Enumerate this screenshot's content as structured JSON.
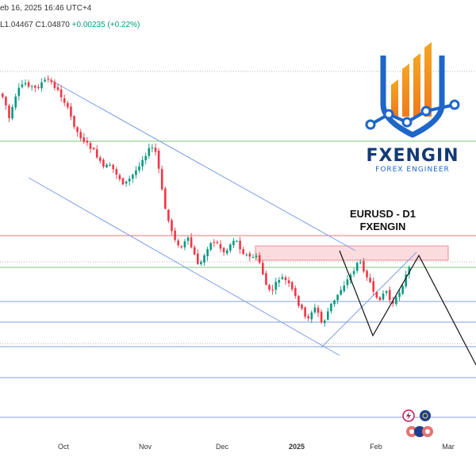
{
  "header": {
    "datetime": "eb 16, 2025 16:46 UTC+4",
    "ohlc_low": "L1.04467",
    "ohlc_close": "C1.04870",
    "ohlc_change": "+0.00235 (+0.22%)"
  },
  "annotation": {
    "line1": "EURUSD - D1",
    "line2": "FXENGIN"
  },
  "logo": {
    "name": "FXENGIN",
    "tagline": "FOREX ENGINEER"
  },
  "colors": {
    "up": "#089981",
    "down": "#f23645",
    "channel": "#7b9fe8",
    "zone_fill": "#f9d0d3",
    "zone_border": "#e57373",
    "green_level": "#7cc67c",
    "blue_level": "#5b7fd6",
    "red_level": "#e57373",
    "projection": "#111111"
  },
  "chart_data": {
    "type": "candlestick",
    "symbol": "EURUSD",
    "timeframe": "D1",
    "x_ticks": [
      "Oct",
      "Nov",
      "Dec",
      "2025",
      "Feb",
      "Mar"
    ],
    "x_tick_bold": [
      false,
      false,
      false,
      true,
      false,
      false
    ],
    "trend": [
      [
        0,
        118
      ],
      [
        5,
        128
      ],
      [
        10,
        150
      ],
      [
        15,
        135
      ],
      [
        20,
        118
      ],
      [
        25,
        108
      ],
      [
        30,
        104
      ],
      [
        35,
        107
      ],
      [
        40,
        110
      ],
      [
        45,
        112
      ],
      [
        50,
        105
      ],
      [
        55,
        102
      ],
      [
        60,
        100
      ],
      [
        65,
        106
      ],
      [
        70,
        112
      ],
      [
        75,
        120
      ],
      [
        80,
        128
      ],
      [
        85,
        140
      ],
      [
        90,
        152
      ],
      [
        95,
        165
      ],
      [
        100,
        172
      ],
      [
        105,
        178
      ],
      [
        110,
        183
      ],
      [
        115,
        188
      ],
      [
        120,
        195
      ],
      [
        125,
        205
      ],
      [
        130,
        212
      ],
      [
        135,
        208
      ],
      [
        140,
        212
      ],
      [
        145,
        218
      ],
      [
        150,
        226
      ],
      [
        155,
        232
      ],
      [
        160,
        228
      ],
      [
        165,
        222
      ],
      [
        170,
        215
      ],
      [
        175,
        206
      ],
      [
        180,
        198
      ],
      [
        185,
        190
      ],
      [
        190,
        186
      ],
      [
        195,
        192
      ],
      [
        200,
        220
      ],
      [
        205,
        255
      ],
      [
        210,
        275
      ],
      [
        215,
        290
      ],
      [
        220,
        302
      ],
      [
        225,
        315
      ],
      [
        230,
        308
      ],
      [
        235,
        300
      ],
      [
        240,
        312
      ],
      [
        245,
        325
      ],
      [
        250,
        336
      ],
      [
        255,
        325
      ],
      [
        260,
        312
      ],
      [
        265,
        306
      ],
      [
        270,
        304
      ],
      [
        275,
        310
      ],
      [
        280,
        318
      ],
      [
        285,
        315
      ],
      [
        290,
        306
      ],
      [
        295,
        300
      ],
      [
        300,
        310
      ],
      [
        305,
        318
      ],
      [
        310,
        322
      ],
      [
        315,
        325
      ],
      [
        320,
        322
      ],
      [
        325,
        328
      ],
      [
        330,
        345
      ],
      [
        335,
        362
      ],
      [
        340,
        370
      ],
      [
        345,
        360
      ],
      [
        350,
        352
      ],
      [
        355,
        350
      ],
      [
        360,
        355
      ],
      [
        365,
        362
      ],
      [
        370,
        372
      ],
      [
        375,
        383
      ],
      [
        380,
        392
      ],
      [
        385,
        404
      ],
      [
        390,
        395
      ],
      [
        395,
        388
      ],
      [
        400,
        395
      ],
      [
        405,
        410
      ],
      [
        410,
        398
      ],
      [
        415,
        385
      ],
      [
        420,
        380
      ],
      [
        425,
        370
      ],
      [
        430,
        362
      ],
      [
        435,
        355
      ],
      [
        440,
        348
      ],
      [
        445,
        340
      ],
      [
        450,
        328
      ],
      [
        455,
        336
      ],
      [
        460,
        345
      ],
      [
        465,
        355
      ],
      [
        470,
        372
      ],
      [
        475,
        380
      ],
      [
        480,
        372
      ],
      [
        485,
        365
      ],
      [
        490,
        378
      ],
      [
        495,
        385
      ],
      [
        500,
        372
      ],
      [
        505,
        362
      ],
      [
        510,
        348
      ],
      [
        515,
        337
      ],
      [
        520,
        330
      ]
    ],
    "channel_upper": [
      [
        62,
        100
      ],
      [
        448,
        316
      ]
    ],
    "channel_lower": [
      [
        36,
        224
      ],
      [
        428,
        448
      ]
    ],
    "channel_inner": [
      [
        405,
        438
      ],
      [
        525,
        318
      ]
    ],
    "projection": [
      [
        428,
        316
      ],
      [
        470,
        423
      ],
      [
        528,
        322
      ],
      [
        600,
        460
      ]
    ],
    "resistance_zone": {
      "x1": 322,
      "x2": 565,
      "y1": 310,
      "y2": 328
    },
    "levels": [
      {
        "y": 90,
        "kind": "dotted"
      },
      {
        "y": 178,
        "kind": "green"
      },
      {
        "y": 297,
        "kind": "red"
      },
      {
        "y": 330,
        "kind": "dotted"
      },
      {
        "y": 337,
        "kind": "green"
      },
      {
        "y": 380,
        "kind": "blue"
      },
      {
        "y": 406,
        "kind": "blue"
      },
      {
        "y": 433,
        "kind": "dotted"
      },
      {
        "y": 437,
        "kind": "blue"
      },
      {
        "y": 476,
        "kind": "blue"
      },
      {
        "y": 526,
        "kind": "blue"
      }
    ]
  }
}
